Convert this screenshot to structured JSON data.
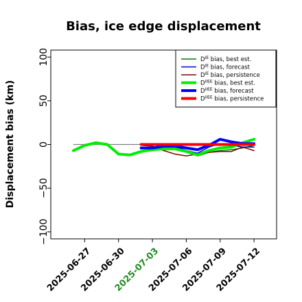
{
  "chart_data": {
    "type": "line",
    "title": "Bias, ice edge displacement",
    "xlabel": "",
    "ylabel": "Displacement bias (km)",
    "x_axis_type": "date",
    "xlim": [
      "2025-06-24",
      "2025-07-14"
    ],
    "ylim": [
      -108,
      108
    ],
    "yticks": [
      -100,
      -50,
      0,
      50,
      100
    ],
    "ytick_labels": [
      "−100",
      "−50",
      "0",
      "50",
      "100"
    ],
    "xticks": [
      "2025-06-27",
      "2025-06-30",
      "2025-07-03",
      "2025-07-06",
      "2025-07-09",
      "2025-07-12"
    ],
    "xtick_colors": [
      "#000000",
      "#000000",
      "#228b22",
      "#000000",
      "#000000",
      "#000000"
    ],
    "grid": false,
    "legend_position": "top-right",
    "zero_line_color": "#808080",
    "series": [
      {
        "name": "D bias, best est.",
        "legend_base": "D",
        "legend_sup": "IE",
        "legend_rest": " bias, best est.",
        "color": "#007700",
        "width": "thin",
        "x": [
          "2025-06-26",
          "2025-06-27",
          "2025-06-28",
          "2025-06-29",
          "2025-06-30",
          "2025-07-01",
          "2025-07-02",
          "2025-07-03",
          "2025-07-04",
          "2025-07-05",
          "2025-07-06",
          "2025-07-07",
          "2025-07-08",
          "2025-07-09",
          "2025-07-10",
          "2025-07-11",
          "2025-07-12"
        ],
        "y": [
          -8,
          -2,
          1,
          0,
          -11,
          -12,
          -7,
          -6,
          -6,
          -5,
          -8,
          -13,
          -9,
          -7,
          -6,
          -4,
          -1
        ]
      },
      {
        "name": "D bias, forecast",
        "legend_base": "D",
        "legend_sup": "IE",
        "legend_rest": " bias, forecast",
        "color": "#0000cc",
        "width": "thin",
        "x": [
          "2025-07-02",
          "2025-07-03",
          "2025-07-04",
          "2025-07-05",
          "2025-07-06",
          "2025-07-07",
          "2025-07-08",
          "2025-07-09",
          "2025-07-10",
          "2025-07-11",
          "2025-07-12"
        ],
        "y": [
          -7,
          -6,
          -3,
          -3,
          -7,
          -10,
          -3,
          1,
          -1,
          -3,
          -3
        ]
      },
      {
        "name": "D bias, persistence",
        "legend_base": "D",
        "legend_sup": "IE",
        "legend_rest": " bias, persistence",
        "color": "#800000",
        "width": "thin",
        "x": [
          "2025-07-02",
          "2025-07-03",
          "2025-07-04",
          "2025-07-05",
          "2025-07-06",
          "2025-07-07",
          "2025-07-08",
          "2025-07-09",
          "2025-07-10",
          "2025-07-11",
          "2025-07-12"
        ],
        "y": [
          -1,
          -2,
          -7,
          -11,
          -13,
          -11,
          -9,
          -8,
          -8,
          -3,
          -7
        ]
      },
      {
        "name": "D bias, best est. (IIEE)",
        "legend_base": "D",
        "legend_sup": "IIEE",
        "legend_rest": " bias, best est.",
        "color": "#00ee00",
        "width": "thick",
        "x": [
          "2025-06-26",
          "2025-06-27",
          "2025-06-28",
          "2025-06-29",
          "2025-06-30",
          "2025-07-01",
          "2025-07-02",
          "2025-07-03",
          "2025-07-04",
          "2025-07-05",
          "2025-07-06",
          "2025-07-07",
          "2025-07-08",
          "2025-07-09",
          "2025-07-10",
          "2025-07-11",
          "2025-07-12"
        ],
        "y": [
          -7,
          -1,
          2,
          0,
          -11,
          -12,
          -8,
          -6,
          -5,
          -5,
          -8,
          -12,
          -7,
          -4,
          -3,
          2,
          6
        ]
      },
      {
        "name": "D bias, forecast (IIEE)",
        "legend_base": "D",
        "legend_sup": "IIEE",
        "legend_rest": " bias, forecast",
        "color": "#0000ff",
        "width": "thick",
        "x": [
          "2025-07-02",
          "2025-07-03",
          "2025-07-04",
          "2025-07-05",
          "2025-07-06",
          "2025-07-07",
          "2025-07-08",
          "2025-07-09",
          "2025-07-10",
          "2025-07-11",
          "2025-07-12"
        ],
        "y": [
          -4,
          -4,
          -2,
          -2,
          -4,
          -6,
          -1,
          6,
          3,
          1,
          1
        ]
      },
      {
        "name": "D bias, persistence (IIEE)",
        "legend_base": "D",
        "legend_sup": "IIEE",
        "legend_rest": " bias, persistence",
        "color": "#ff0000",
        "width": "thick",
        "x": [
          "2025-07-02",
          "2025-07-03",
          "2025-07-04",
          "2025-07-05",
          "2025-07-06",
          "2025-07-07",
          "2025-07-08",
          "2025-07-09",
          "2025-07-10",
          "2025-07-11",
          "2025-07-12"
        ],
        "y": [
          0,
          0,
          0,
          0,
          0,
          0,
          0,
          0,
          0,
          0,
          0
        ]
      }
    ]
  }
}
